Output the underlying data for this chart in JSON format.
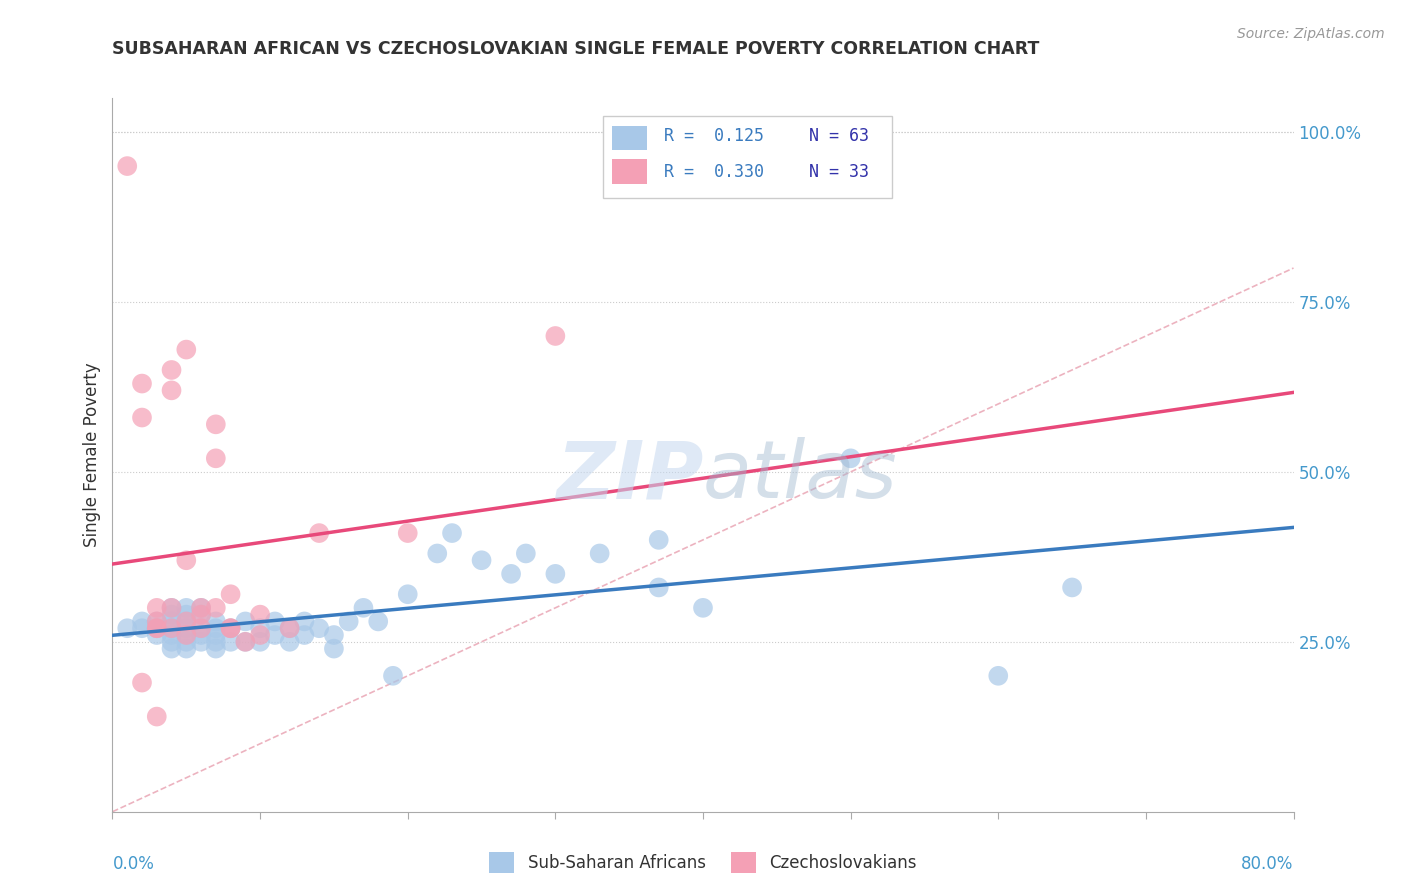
{
  "title": "SUBSAHARAN AFRICAN VS CZECHOSLOVAKIAN SINGLE FEMALE POVERTY CORRELATION CHART",
  "source": "Source: ZipAtlas.com",
  "ylabel": "Single Female Poverty",
  "right_yticks": [
    "25.0%",
    "50.0%",
    "75.0%",
    "100.0%"
  ],
  "right_ytick_vals": [
    0.25,
    0.5,
    0.75,
    1.0
  ],
  "xmin": 0.0,
  "xmax": 0.8,
  "ymin": 0.0,
  "ymax": 1.05,
  "blue_color": "#a8c8e8",
  "pink_color": "#f4a0b5",
  "blue_line_color": "#3a7bbf",
  "pink_line_color": "#e8497a",
  "diag_line_color": "#e8a0b0",
  "legend_R1": "R =  0.125",
  "legend_N1": "N = 63",
  "legend_R2": "R =  0.330",
  "legend_N2": "N = 33",
  "legend_color_blue": "#3a7bbf",
  "legend_color_pink": "#e8497a",
  "legend_color_N": "#3333aa",
  "watermark_zip": "ZIP",
  "watermark_atlas": "atlas",
  "blue_scatter_x": [
    0.01,
    0.02,
    0.02,
    0.03,
    0.03,
    0.03,
    0.04,
    0.04,
    0.04,
    0.04,
    0.04,
    0.04,
    0.04,
    0.05,
    0.05,
    0.05,
    0.05,
    0.05,
    0.05,
    0.05,
    0.06,
    0.06,
    0.06,
    0.06,
    0.06,
    0.07,
    0.07,
    0.07,
    0.07,
    0.07,
    0.08,
    0.08,
    0.09,
    0.09,
    0.1,
    0.1,
    0.11,
    0.11,
    0.12,
    0.12,
    0.13,
    0.13,
    0.14,
    0.15,
    0.15,
    0.16,
    0.17,
    0.18,
    0.19,
    0.2,
    0.22,
    0.23,
    0.25,
    0.27,
    0.28,
    0.3,
    0.33,
    0.37,
    0.37,
    0.4,
    0.5,
    0.6,
    0.65
  ],
  "blue_scatter_y": [
    0.27,
    0.28,
    0.27,
    0.28,
    0.27,
    0.26,
    0.3,
    0.29,
    0.28,
    0.27,
    0.26,
    0.25,
    0.24,
    0.3,
    0.29,
    0.28,
    0.27,
    0.26,
    0.25,
    0.24,
    0.3,
    0.29,
    0.27,
    0.26,
    0.25,
    0.28,
    0.27,
    0.26,
    0.25,
    0.24,
    0.27,
    0.25,
    0.28,
    0.25,
    0.27,
    0.25,
    0.28,
    0.26,
    0.27,
    0.25,
    0.28,
    0.26,
    0.27,
    0.26,
    0.24,
    0.28,
    0.3,
    0.28,
    0.2,
    0.32,
    0.38,
    0.41,
    0.37,
    0.35,
    0.38,
    0.35,
    0.38,
    0.4,
    0.33,
    0.3,
    0.52,
    0.2,
    0.33
  ],
  "pink_scatter_x": [
    0.01,
    0.02,
    0.02,
    0.02,
    0.03,
    0.03,
    0.03,
    0.03,
    0.03,
    0.04,
    0.04,
    0.04,
    0.04,
    0.05,
    0.05,
    0.05,
    0.05,
    0.06,
    0.06,
    0.06,
    0.07,
    0.07,
    0.07,
    0.08,
    0.08,
    0.08,
    0.09,
    0.1,
    0.1,
    0.12,
    0.14,
    0.2,
    0.3
  ],
  "pink_scatter_y": [
    0.95,
    0.63,
    0.58,
    0.19,
    0.27,
    0.28,
    0.3,
    0.27,
    0.14,
    0.65,
    0.62,
    0.3,
    0.27,
    0.68,
    0.37,
    0.28,
    0.26,
    0.3,
    0.29,
    0.27,
    0.57,
    0.52,
    0.3,
    0.32,
    0.27,
    0.27,
    0.25,
    0.29,
    0.26,
    0.27,
    0.41,
    0.41,
    0.7
  ],
  "background_color": "#ffffff"
}
